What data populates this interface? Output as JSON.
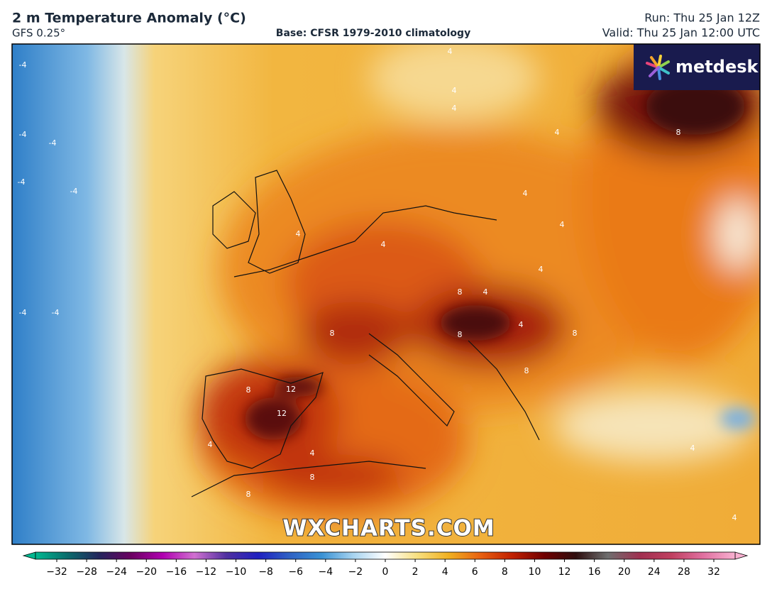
{
  "header": {
    "title": "2 m Temperature Anomaly (°C)",
    "model": "GFS 0.25°",
    "base": "Base: CFSR 1979-2010 climatology",
    "run": "Run: Thu 25 Jan 12Z",
    "valid": "Valid: Thu 25 Jan 12:00 UTC"
  },
  "logo": "metdesk",
  "watermark": "WXCHARTS.COM",
  "colorbar": {
    "ticks": [
      {
        "value": -32,
        "label": "−32"
      },
      {
        "value": -28,
        "label": "−28"
      },
      {
        "value": -24,
        "label": "−24"
      },
      {
        "value": -20,
        "label": "−20"
      },
      {
        "value": -16,
        "label": "−16"
      },
      {
        "value": -12,
        "label": "−12"
      },
      {
        "value": -10,
        "label": "−10"
      },
      {
        "value": -8,
        "label": "−8"
      },
      {
        "value": -6,
        "label": "−6"
      },
      {
        "value": -4,
        "label": "−4"
      },
      {
        "value": -2,
        "label": "−2"
      },
      0,
      2,
      4,
      6,
      8,
      10,
      12,
      16,
      20,
      24,
      28,
      32
    ]
  },
  "contour_labels": [
    -4,
    -4,
    -4,
    -4,
    -4,
    -4,
    -4,
    4,
    4,
    4,
    8,
    4,
    4,
    4,
    4,
    4,
    4,
    8,
    4,
    8,
    8,
    4,
    8,
    8,
    8,
    12,
    12,
    8,
    8,
    4,
    4,
    4,
    4
  ]
}
